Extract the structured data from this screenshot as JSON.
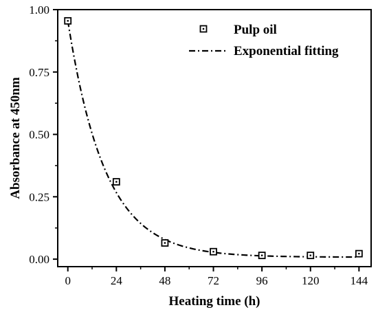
{
  "chart_data": {
    "type": "scatter",
    "title": "",
    "xlabel": "Heating time (h)",
    "ylabel": "Absorbance at 450nm",
    "xlim": [
      -5,
      150
    ],
    "ylim": [
      -0.03,
      1.0
    ],
    "xticks": [
      0,
      24,
      48,
      72,
      96,
      120,
      144
    ],
    "xtick_labels": [
      "0",
      "24",
      "48",
      "72",
      "96",
      "120",
      "144"
    ],
    "yticks": [
      0.0,
      0.25,
      0.5,
      0.75,
      1.0
    ],
    "ytick_labels": [
      "0.00",
      "0.25",
      "0.50",
      "0.75",
      "1.00"
    ],
    "grid": false,
    "legend_position": "top-right",
    "series": [
      {
        "name": "Pulp oil",
        "kind": "scatter",
        "marker": "open-square",
        "x": [
          0,
          24,
          48,
          72,
          96,
          120,
          144
        ],
        "y": [
          0.955,
          0.31,
          0.065,
          0.03,
          0.015,
          0.015,
          0.022
        ]
      },
      {
        "name": "Exponential fitting",
        "kind": "line",
        "style": "dash-dot",
        "fit": {
          "y0": 0.008,
          "A": 0.947,
          "t": 18.5
        }
      }
    ],
    "colors": {
      "marks": "#000000",
      "background": "#ffffff"
    }
  }
}
